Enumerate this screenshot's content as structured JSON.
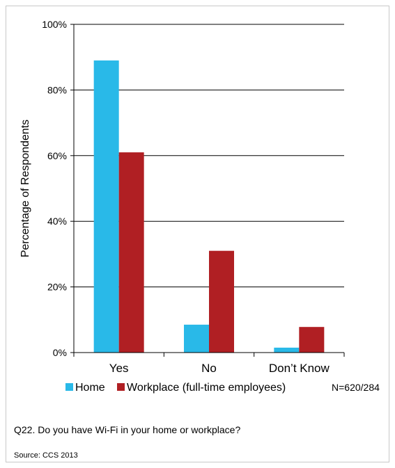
{
  "chart_data": {
    "type": "bar",
    "categories": [
      "Yes",
      "No",
      "Don’t Know"
    ],
    "series": [
      {
        "name": "Home",
        "color": "#29b9e8",
        "values": [
          89,
          8.5,
          1.5
        ]
      },
      {
        "name": "Workplace (full-time employees)",
        "color": "#b01f23",
        "values": [
          61,
          31,
          7.8
        ]
      }
    ],
    "ylabel": "Percentage of Respondents",
    "ylim": [
      0,
      100
    ],
    "yticks": [
      0,
      20,
      40,
      60,
      80,
      100
    ],
    "ytick_labels": [
      "0%",
      "20%",
      "40%",
      "60%",
      "80%",
      "100%"
    ],
    "grid": true,
    "legend_position": "bottom",
    "sample_note": "N=620/284"
  },
  "question": "Q22. Do you have Wi-Fi in your home or workplace?",
  "source": "Source: CCS 2013"
}
